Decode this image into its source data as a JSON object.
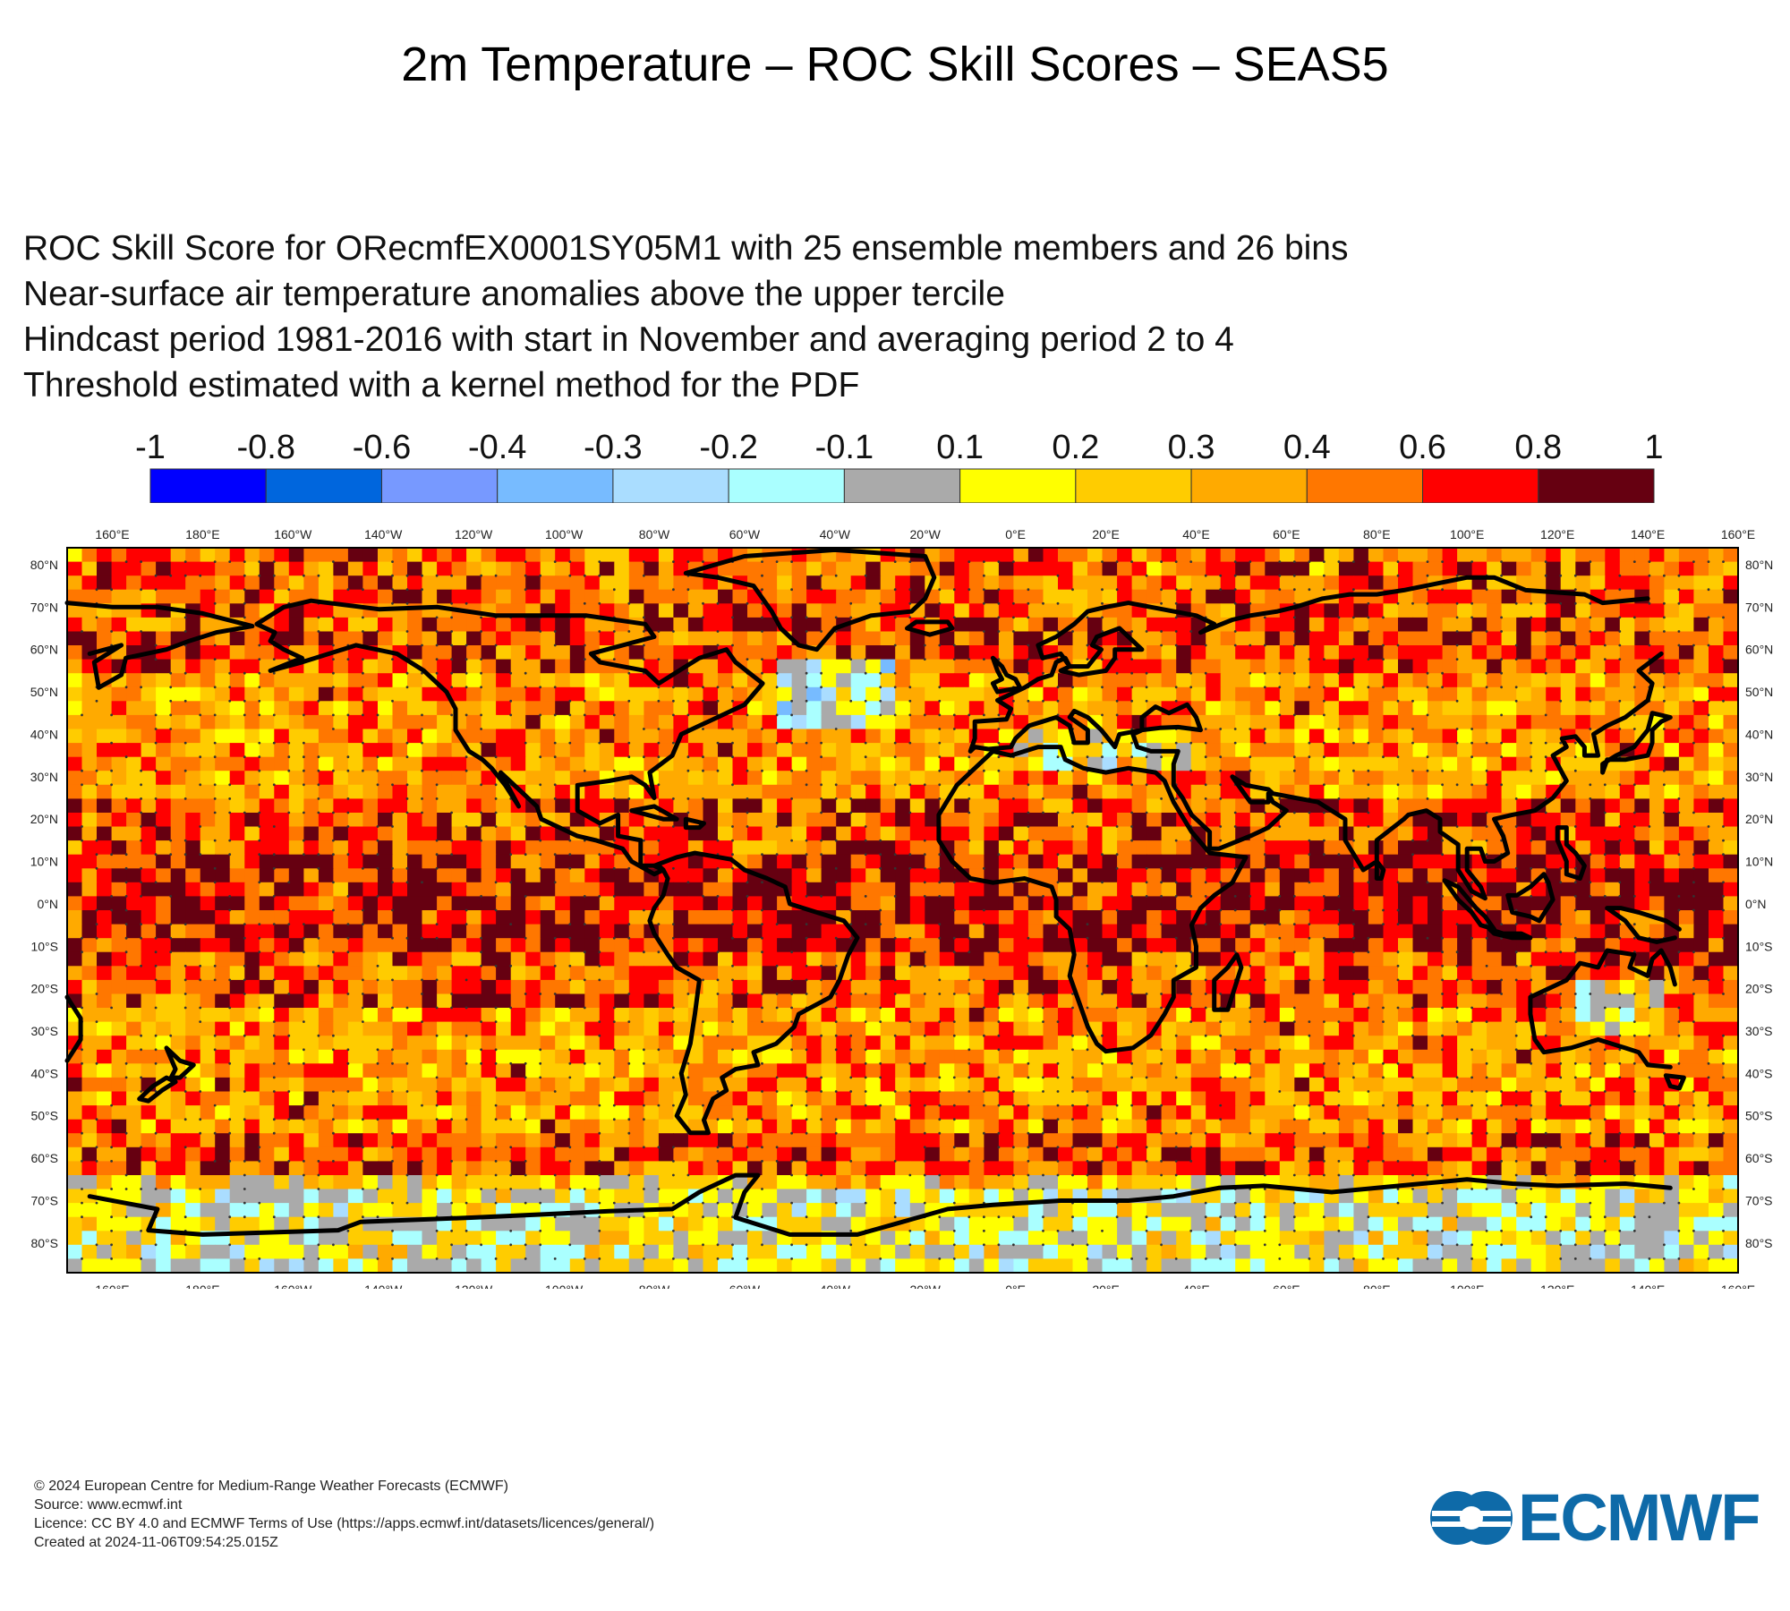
{
  "title": "2m Temperature – ROC Skill Scores – SEAS5",
  "subtitle_lines": [
    "ROC Skill Score for ORecmfEX0001SY05M1 with 25 ensemble members and 26 bins",
    "Near-surface air temperature anomalies above the upper tercile",
    "Hindcast period 1981-2016 with start in November and averaging period  2 to  4",
    "Threshold estimated with a kernel method for the PDF"
  ],
  "colorbar": {
    "labels": [
      "-1",
      "-0.8",
      "-0.6",
      "-0.4",
      "-0.3",
      "-0.2",
      "-0.1",
      "0.1",
      "0.2",
      "0.3",
      "0.4",
      "0.6",
      "0.8",
      "1"
    ],
    "colors": [
      "#0000ff",
      "#0066dd",
      "#7799ff",
      "#77bbff",
      "#aaddff",
      "#aaffff",
      "#aaaaaa",
      "#ffff00",
      "#ffcc00",
      "#ffaa00",
      "#ff7700",
      "#ff0000",
      "#660011"
    ]
  },
  "map": {
    "lon_labels": [
      "160°E",
      "180°E",
      "160°W",
      "140°W",
      "120°W",
      "100°W",
      "80°W",
      "60°W",
      "40°W",
      "20°W",
      "0°E",
      "20°E",
      "40°E",
      "60°E",
      "80°E",
      "100°E",
      "120°E",
      "140°E",
      "160°E"
    ],
    "lat_labels": [
      "80°N",
      "70°N",
      "60°N",
      "50°N",
      "40°N",
      "30°N",
      "20°N",
      "10°N",
      "0°N",
      "10°S",
      "20°S",
      "30°S",
      "40°S",
      "50°S",
      "60°S",
      "70°S",
      "80°S"
    ]
  },
  "footer": [
    "© 2024 European Centre for Medium-Range Weather Forecasts (ECMWF)",
    "Source: www.ecmwf.int",
    "Licence: CC BY 4.0 and ECMWF Terms of Use (https://apps.ecmwf.int/datasets/licences/general/)",
    "Created at 2024-11-06T09:54:25.015Z"
  ],
  "logo": {
    "text": "ECMWF",
    "color": "#0e6aa8"
  }
}
